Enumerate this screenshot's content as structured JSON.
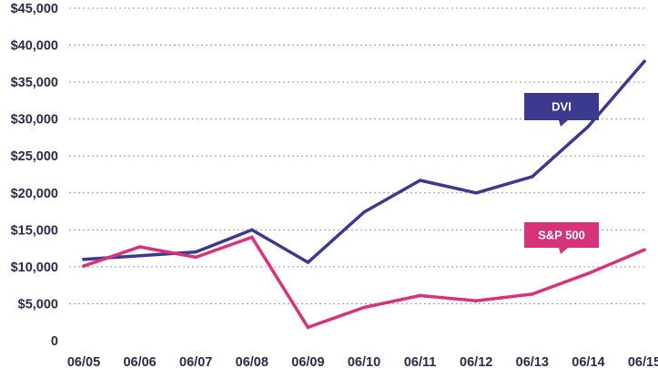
{
  "chart_data": {
    "type": "line",
    "title": "",
    "xlabel": "",
    "ylabel": "",
    "categories": [
      "06/05",
      "06/06",
      "06/07",
      "06/08",
      "06/09",
      "06/10",
      "06/11",
      "06/12",
      "06/13",
      "06/14",
      "06/15"
    ],
    "y_tick_labels": [
      "0",
      "$5,000",
      "$10,000",
      "$15,000",
      "$20,000",
      "$25,000",
      "$30,000",
      "$35,000",
      "$40,000",
      "$45,000"
    ],
    "y_ticks": [
      0,
      5000,
      10000,
      15000,
      20000,
      25000,
      30000,
      35000,
      40000,
      45000
    ],
    "ylim": [
      0,
      45000
    ],
    "grid": true,
    "series": [
      {
        "name": "DVI",
        "color": "#3b3a8f",
        "values": [
          11000,
          11500,
          12000,
          15000,
          10600,
          17400,
          21700,
          20000,
          22200,
          29000,
          37800
        ]
      },
      {
        "name": "S&P 500",
        "color": "#d6337a",
        "values": [
          10100,
          12700,
          11300,
          14000,
          1800,
          4500,
          6100,
          5400,
          6300,
          9100,
          12300
        ]
      }
    ]
  }
}
